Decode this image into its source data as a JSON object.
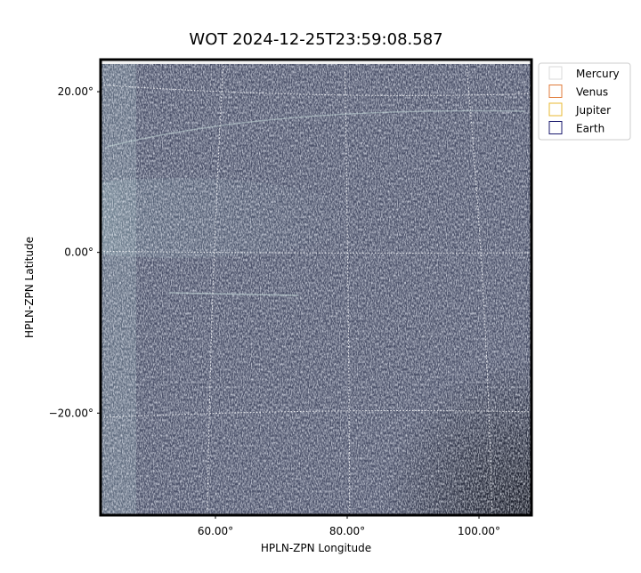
{
  "chart_data": {
    "type": "image",
    "title": "WOT 2024-12-25T23:59:08.587",
    "x_label": "HPLN-ZPN Longitude",
    "y_label": "HPLN-ZPN Latitude",
    "xlim": [
      42.57,
      107.97
    ],
    "ylim": [
      -32.7,
      23.99
    ],
    "xticks": [
      {
        "value": 60,
        "label": "60.00°"
      },
      {
        "value": 80,
        "label": "80.00°"
      },
      {
        "value": 100,
        "label": "100.00°"
      }
    ],
    "yticks": [
      {
        "value": -20,
        "label": "−20.00°"
      },
      {
        "value": 0,
        "label": "0.00°"
      },
      {
        "value": 20,
        "label": "20.00°"
      }
    ],
    "grid": true,
    "legend": "outside upper right",
    "series": [
      {
        "name": "Mercury",
        "color": "#d9d9d9"
      },
      {
        "name": "Venus",
        "color": "#e07b39"
      },
      {
        "name": "Jupiter",
        "color": "#e8b830"
      },
      {
        "name": "Earth",
        "color": "#1a1a6e"
      }
    ]
  }
}
